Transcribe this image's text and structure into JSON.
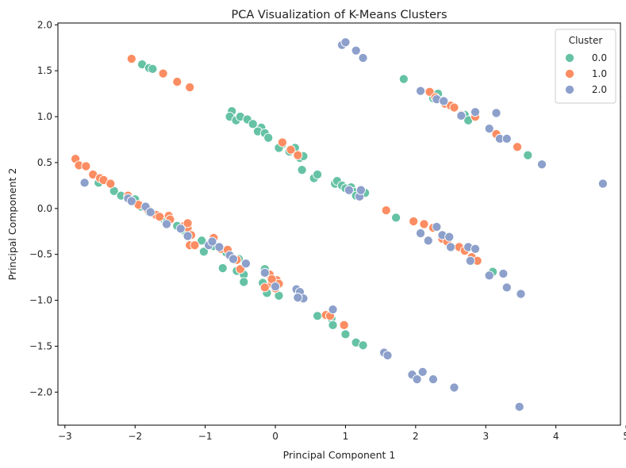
{
  "chart_data": {
    "type": "scatter",
    "title": "PCA Visualization of K-Means Clusters",
    "xlabel": "Principal Component 1",
    "ylabel": "Principal Component 2",
    "xlim": [
      -3.1,
      4.92
    ],
    "ylim": [
      -2.36,
      2.02
    ],
    "xticks": [
      -3,
      -2,
      -1,
      0,
      1,
      2,
      3,
      4,
      5
    ],
    "yticks": [
      -2.0,
      -1.5,
      -1.0,
      -0.5,
      0.0,
      0.5,
      1.0,
      1.5,
      2.0
    ],
    "xtick_labels": [
      "−3",
      "−2",
      "−1",
      "0",
      "1",
      "2",
      "3",
      "4",
      "5"
    ],
    "ytick_labels": [
      "−2.0",
      "−1.5",
      "−1.0",
      "−0.5",
      "0.0",
      "0.5",
      "1.0",
      "1.5",
      "2.0"
    ],
    "grid": false,
    "legend": {
      "title": "Cluster",
      "placement": "top-right",
      "entries": [
        "0.0",
        "1.0",
        "2.0"
      ]
    },
    "series": [
      {
        "name": "0.0",
        "color": "#66c2a5",
        "points": [
          [
            -2.52,
            0.28
          ],
          [
            -2.3,
            0.19
          ],
          [
            -2.2,
            0.14
          ],
          [
            -2.0,
            0.1
          ],
          [
            -1.92,
            0.02
          ],
          [
            -1.8,
            -0.04
          ],
          [
            -1.6,
            -0.11
          ],
          [
            -1.55,
            -0.13
          ],
          [
            -1.4,
            -0.19
          ],
          [
            -1.3,
            -0.24
          ],
          [
            -1.05,
            -0.35
          ],
          [
            -1.02,
            -0.47
          ],
          [
            -0.88,
            -0.41
          ],
          [
            -0.7,
            -0.48
          ],
          [
            -1.02,
            -0.47
          ],
          [
            -0.52,
            -0.55
          ],
          [
            -0.75,
            -0.65
          ],
          [
            -0.55,
            -0.68
          ],
          [
            -0.45,
            -0.72
          ],
          [
            -0.45,
            -0.8
          ],
          [
            -0.15,
            -0.66
          ],
          [
            -0.18,
            -0.81
          ],
          [
            -0.12,
            -0.92
          ],
          [
            0.05,
            -0.95
          ],
          [
            0.6,
            -1.17
          ],
          [
            0.8,
            -1.2
          ],
          [
            0.82,
            -1.27
          ],
          [
            1.0,
            -1.37
          ],
          [
            1.15,
            -1.46
          ],
          [
            1.25,
            -1.49
          ],
          [
            -0.62,
            1.06
          ],
          [
            -0.65,
            1.0
          ],
          [
            -0.56,
            0.96
          ],
          [
            -0.5,
            1.0
          ],
          [
            -0.4,
            0.97
          ],
          [
            -0.32,
            0.92
          ],
          [
            -0.2,
            0.88
          ],
          [
            -0.25,
            0.84
          ],
          [
            -0.15,
            0.82
          ],
          [
            -0.1,
            0.77
          ],
          [
            0.1,
            0.7
          ],
          [
            0.05,
            0.66
          ],
          [
            0.2,
            0.62
          ],
          [
            0.28,
            0.66
          ],
          [
            0.35,
            0.55
          ],
          [
            0.4,
            0.57
          ],
          [
            0.38,
            0.42
          ],
          [
            0.55,
            0.33
          ],
          [
            0.6,
            0.37
          ],
          [
            0.85,
            0.27
          ],
          [
            0.88,
            0.3
          ],
          [
            0.95,
            0.25
          ],
          [
            1.0,
            0.22
          ],
          [
            1.08,
            0.23
          ],
          [
            1.12,
            0.18
          ],
          [
            1.15,
            0.14
          ],
          [
            1.28,
            0.17
          ],
          [
            1.72,
            -0.1
          ],
          [
            -1.9,
            1.57
          ],
          [
            -1.8,
            1.53
          ],
          [
            -1.75,
            1.52
          ],
          [
            1.83,
            1.41
          ],
          [
            2.25,
            1.2
          ],
          [
            2.32,
            1.25
          ],
          [
            2.7,
            1.02
          ],
          [
            2.75,
            0.96
          ],
          [
            3.1,
            -0.69
          ],
          [
            3.6,
            0.58
          ]
        ]
      },
      {
        "name": "1.0",
        "color": "#fc8d62",
        "points": [
          [
            -2.85,
            0.54
          ],
          [
            -2.8,
            0.47
          ],
          [
            -2.7,
            0.46
          ],
          [
            -2.6,
            0.37
          ],
          [
            -2.5,
            0.33
          ],
          [
            -2.45,
            0.31
          ],
          [
            -2.35,
            0.27
          ],
          [
            -2.1,
            0.14
          ],
          [
            -1.95,
            0.04
          ],
          [
            -1.82,
            -0.01
          ],
          [
            -1.7,
            -0.07
          ],
          [
            -1.65,
            -0.09
          ],
          [
            -1.52,
            -0.08
          ],
          [
            -1.5,
            -0.12
          ],
          [
            -1.3,
            -0.19
          ],
          [
            -1.25,
            -0.21
          ],
          [
            -1.2,
            -0.29
          ],
          [
            -1.22,
            -0.4
          ],
          [
            -1.15,
            -0.4
          ],
          [
            -1.25,
            -0.16
          ],
          [
            -0.88,
            -0.32
          ],
          [
            -0.78,
            -0.44
          ],
          [
            -0.68,
            -0.45
          ],
          [
            -0.55,
            -0.56
          ],
          [
            -0.5,
            -0.66
          ],
          [
            -0.08,
            -0.72
          ],
          [
            -0.05,
            -0.82
          ],
          [
            -0.15,
            -0.86
          ],
          [
            0.02,
            -0.78
          ],
          [
            0.0,
            -0.87
          ],
          [
            0.05,
            -0.82
          ],
          [
            -0.05,
            -0.77
          ],
          [
            0.72,
            -1.16
          ],
          [
            0.78,
            -1.17
          ],
          [
            0.98,
            -1.27
          ],
          [
            0.1,
            0.72
          ],
          [
            0.22,
            0.64
          ],
          [
            0.32,
            0.58
          ],
          [
            1.58,
            -0.02
          ],
          [
            1.97,
            -0.14
          ],
          [
            2.12,
            -0.17
          ],
          [
            2.25,
            -0.21
          ],
          [
            2.38,
            -0.33
          ],
          [
            2.45,
            -0.36
          ],
          [
            2.62,
            -0.42
          ],
          [
            2.7,
            -0.46
          ],
          [
            2.8,
            -0.53
          ],
          [
            2.88,
            -0.57
          ],
          [
            -2.05,
            1.63
          ],
          [
            -1.6,
            1.47
          ],
          [
            -1.4,
            1.38
          ],
          [
            -1.22,
            1.32
          ],
          [
            2.2,
            1.27
          ],
          [
            2.28,
            1.21
          ],
          [
            2.42,
            1.14
          ],
          [
            2.5,
            1.12
          ],
          [
            2.55,
            1.1
          ],
          [
            2.65,
            1.02
          ],
          [
            2.85,
            1.0
          ],
          [
            3.15,
            0.81
          ],
          [
            3.45,
            0.67
          ]
        ]
      },
      {
        "name": "2.0",
        "color": "#8da0cb",
        "points": [
          [
            -2.72,
            0.28
          ],
          [
            -2.1,
            0.11
          ],
          [
            -2.05,
            0.08
          ],
          [
            -1.85,
            0.02
          ],
          [
            -1.78,
            -0.04
          ],
          [
            -1.55,
            -0.17
          ],
          [
            -1.35,
            -0.22
          ],
          [
            -1.25,
            -0.3
          ],
          [
            -0.95,
            -0.4
          ],
          [
            -0.9,
            -0.36
          ],
          [
            -0.8,
            -0.42
          ],
          [
            -0.65,
            -0.51
          ],
          [
            -0.6,
            -0.55
          ],
          [
            -0.42,
            -0.6
          ],
          [
            -0.15,
            -0.7
          ],
          [
            0.0,
            -0.85
          ],
          [
            0.3,
            -0.88
          ],
          [
            0.35,
            -0.91
          ],
          [
            0.4,
            -0.98
          ],
          [
            0.32,
            -0.97
          ],
          [
            0.82,
            -1.1
          ],
          [
            1.55,
            -1.57
          ],
          [
            1.6,
            -1.6
          ],
          [
            1.95,
            -1.81
          ],
          [
            2.02,
            -1.86
          ],
          [
            2.1,
            -1.78
          ],
          [
            2.25,
            -1.86
          ],
          [
            2.55,
            -1.95
          ],
          [
            3.48,
            -2.16
          ],
          [
            2.07,
            -0.27
          ],
          [
            2.18,
            -0.35
          ],
          [
            2.3,
            -0.2
          ],
          [
            2.38,
            -0.29
          ],
          [
            2.48,
            -0.31
          ],
          [
            2.5,
            -0.42
          ],
          [
            2.75,
            -0.42
          ],
          [
            2.78,
            -0.57
          ],
          [
            2.85,
            -0.44
          ],
          [
            3.05,
            -0.73
          ],
          [
            3.25,
            -0.71
          ],
          [
            3.3,
            -0.86
          ],
          [
            3.5,
            -0.93
          ],
          [
            0.95,
            1.78
          ],
          [
            1.0,
            1.81
          ],
          [
            1.15,
            1.72
          ],
          [
            1.25,
            1.64
          ],
          [
            2.07,
            1.28
          ],
          [
            2.3,
            1.19
          ],
          [
            2.4,
            1.17
          ],
          [
            2.65,
            1.01
          ],
          [
            2.85,
            1.05
          ],
          [
            3.05,
            0.87
          ],
          [
            3.15,
            1.04
          ],
          [
            3.2,
            0.76
          ],
          [
            3.3,
            0.76
          ],
          [
            3.8,
            0.48
          ],
          [
            4.67,
            0.27
          ],
          [
            1.05,
            0.2
          ],
          [
            1.2,
            0.13
          ],
          [
            1.22,
            0.2
          ]
        ]
      }
    ]
  }
}
